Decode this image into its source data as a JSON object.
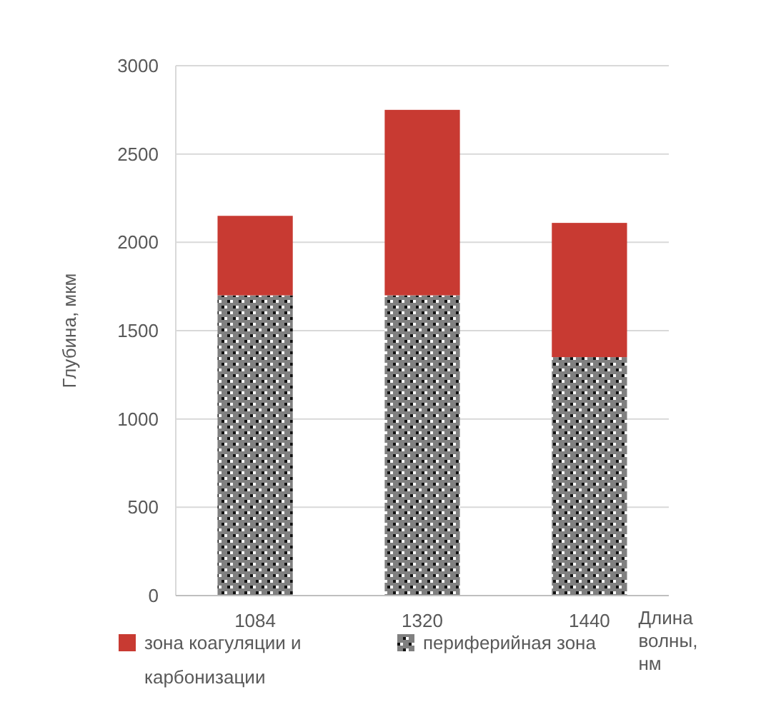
{
  "chart_data": {
    "type": "bar",
    "stacked": true,
    "categories": [
      "1084",
      "1320",
      "1440"
    ],
    "xlabel": "Длина волны, нм",
    "ylabel": "Глубина, мкм",
    "series": [
      {
        "name": "периферийная зона",
        "color": "#808080",
        "values": [
          1700,
          1700,
          1350
        ]
      },
      {
        "name": "зона коагуляции и карбонизации",
        "color": "#c83a32",
        "values": [
          450,
          1050,
          760
        ]
      }
    ],
    "ylim": [
      0,
      3000
    ],
    "yticks": [
      0,
      500,
      1000,
      1500,
      2000,
      2500,
      3000
    ],
    "grid": "y",
    "legend": "bottom"
  }
}
